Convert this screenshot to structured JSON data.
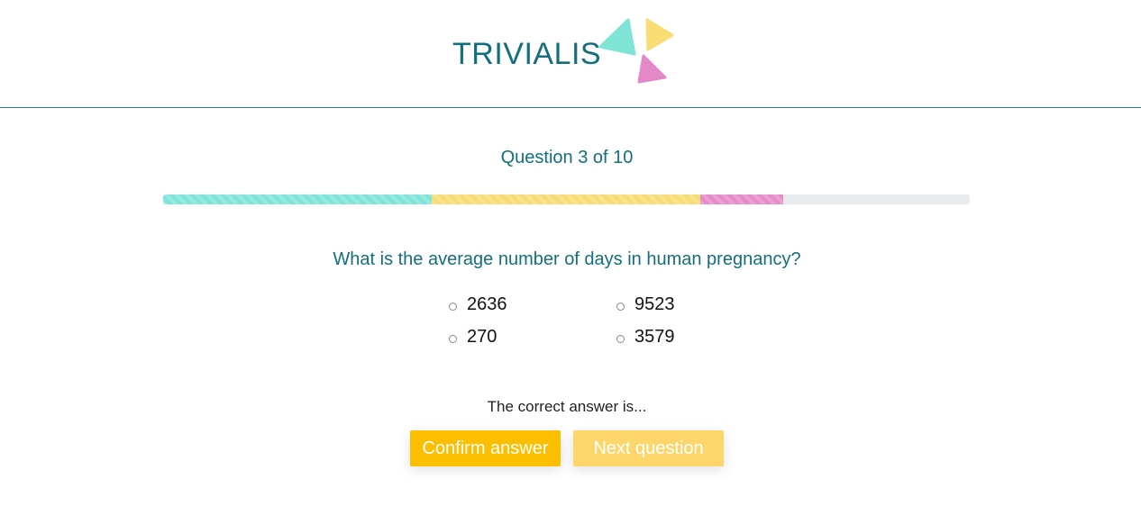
{
  "header": {
    "logo_text": "TRIVIALIS",
    "colors": {
      "teal": "#7fe3d6",
      "yellow": "#f9dc72",
      "pink": "#e488c8",
      "text": "#136f7d"
    }
  },
  "quiz": {
    "question_count_label": "Question 3 of 10",
    "progress": {
      "segments": [
        {
          "name": "teal",
          "color": "#7ee4d9",
          "fraction": 0.333
        },
        {
          "name": "yellow",
          "color": "#f7dc74",
          "fraction": 0.333
        },
        {
          "name": "pink",
          "color": "#e78bc8",
          "fraction": 0.103
        }
      ],
      "track_color": "#e8ebee"
    },
    "question_text": "What is the average number of days in human pregnancy?",
    "options": [
      {
        "label": "2636"
      },
      {
        "label": "9523"
      },
      {
        "label": "270"
      },
      {
        "label": "3579"
      }
    ],
    "answer_message": "The correct answer is...",
    "confirm_label": "Confirm answer",
    "next_label": "Next question"
  }
}
